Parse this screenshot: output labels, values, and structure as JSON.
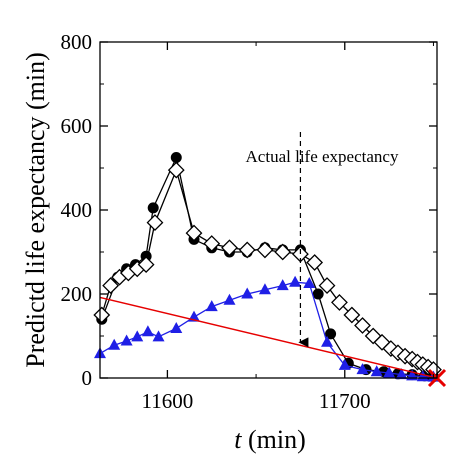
{
  "chart_data": {
    "type": "line",
    "ylabel": "Predictd life expectancy (min)",
    "xlabel_italic": "t",
    "xlabel_unit": " (min)",
    "xlim": [
      11562,
      11752
    ],
    "ylim": [
      0,
      800
    ],
    "xticks": [
      11600,
      11700
    ],
    "yticks": [
      0,
      200,
      400,
      600,
      800
    ],
    "grid": false,
    "annotation": {
      "text": "Actual life expectancy",
      "arrow_from": [
        11675,
        300
      ],
      "arrow_to": [
        11675,
        85
      ]
    },
    "series": [
      {
        "marker": "filled-circle",
        "color": "#000000",
        "x": [
          11563,
          11572,
          11577,
          11582,
          11588,
          11592,
          11605,
          11615,
          11625,
          11635,
          11645,
          11655,
          11665,
          11675,
          11685,
          11692,
          11702,
          11712,
          11722,
          11730,
          11738,
          11745,
          11750
        ],
        "y": [
          140,
          240,
          260,
          270,
          290,
          405,
          525,
          330,
          310,
          300,
          300,
          310,
          305,
          305,
          200,
          105,
          35,
          20,
          15,
          10,
          8,
          5,
          3
        ]
      },
      {
        "marker": "open-diamond",
        "color": "#000000",
        "x": [
          11563,
          11568,
          11573,
          11578,
          11583,
          11588,
          11593,
          11605,
          11615,
          11625,
          11635,
          11645,
          11655,
          11665,
          11675,
          11683,
          11690,
          11697,
          11704,
          11710,
          11716,
          11721,
          11726,
          11730,
          11734,
          11738,
          11741,
          11744,
          11747,
          11750
        ],
        "y": [
          150,
          220,
          240,
          250,
          260,
          270,
          370,
          495,
          345,
          320,
          310,
          305,
          305,
          300,
          295,
          275,
          220,
          180,
          150,
          125,
          100,
          85,
          70,
          60,
          52,
          45,
          38,
          32,
          26,
          20
        ]
      },
      {
        "marker": "filled-triangle",
        "color": "#1f1fe6",
        "x": [
          11562,
          11570,
          11577,
          11583,
          11589,
          11595,
          11605,
          11615,
          11625,
          11635,
          11645,
          11655,
          11665,
          11672,
          11680,
          11690,
          11700,
          11710,
          11718,
          11725,
          11732,
          11738,
          11744,
          11750
        ],
        "y": [
          58,
          78,
          88,
          98,
          110,
          98,
          118,
          145,
          170,
          185,
          200,
          210,
          220,
          228,
          225,
          85,
          30,
          20,
          15,
          12,
          8,
          5,
          3,
          2
        ]
      },
      {
        "style": "line",
        "color": "#e60000",
        "x": [
          11562,
          11752
        ],
        "y": [
          192,
          0
        ]
      }
    ],
    "end_marker": {
      "shape": "cross",
      "color": "#e60000",
      "x": 11752,
      "y": 0
    }
  }
}
